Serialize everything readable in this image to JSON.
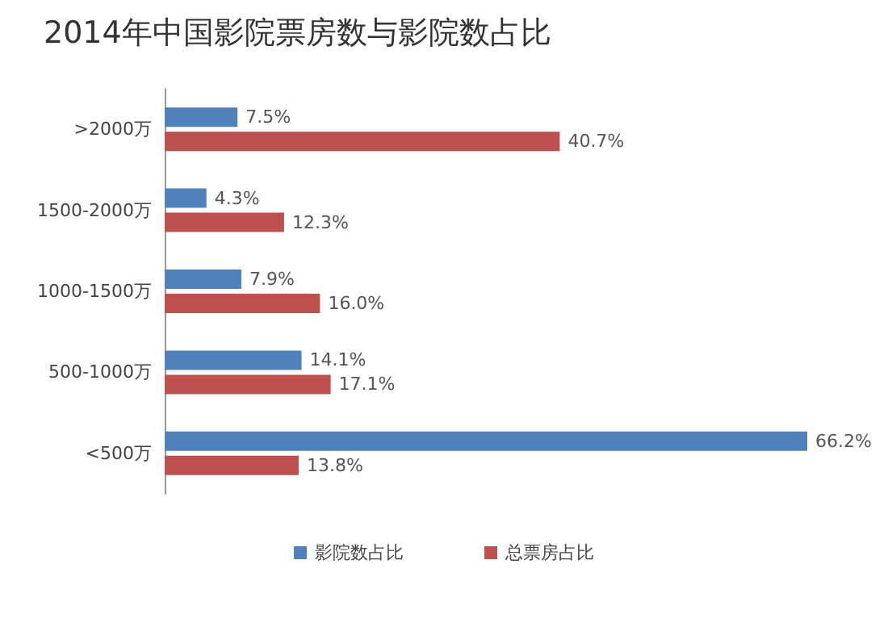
{
  "chart_data": {
    "type": "bar",
    "orientation": "horizontal",
    "title": "2014年中国影院票房数与影院数占比",
    "categories": [
      ">2000万",
      "1500-2000万",
      "1000-1500万",
      "500-1000万",
      "<500万"
    ],
    "series": [
      {
        "name": "影院数占比",
        "color": "#4f81bd",
        "values": [
          7.5,
          4.3,
          7.9,
          14.1,
          66.2
        ],
        "value_labels": [
          "7.5%",
          "4.3%",
          "7.9%",
          "14.1%",
          "66.2%"
        ]
      },
      {
        "name": "总票房占比",
        "color": "#c0504d",
        "values": [
          40.7,
          12.3,
          16.0,
          17.1,
          13.8
        ],
        "value_labels": [
          "40.7%",
          "12.3%",
          "16.0%",
          "17.1%",
          "13.8%"
        ]
      }
    ],
    "legend": "bottom",
    "grid": false
  }
}
